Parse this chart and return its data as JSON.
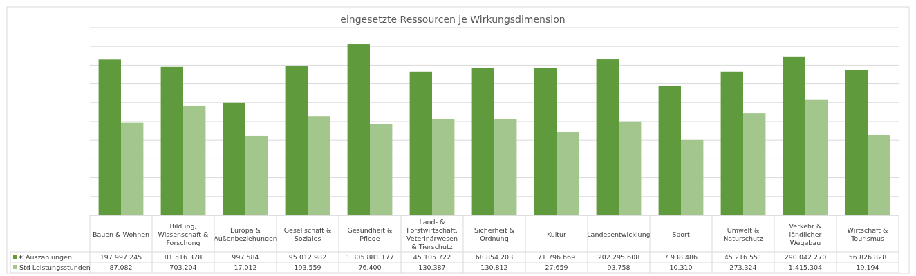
{
  "chart_data": {
    "type": "bar",
    "title": "eingesetzte Ressourcen je Wirkungsdimension",
    "categories": [
      "Bauen & Wohnen",
      "Bildung, Wissenschaft & Forschung",
      "Europa & Außenbeziehungen",
      "Gesellschaft & Soziales",
      "Gesundheit & Pflege",
      "Land- & Forstwirtschaft, Veterinärwesen & Tierschutz",
      "Sicherheit & Ordnung",
      "Kultur",
      "Landesentwicklung",
      "Sport",
      "Umwelt & Naturschutz",
      "Verkehr & ländlicher Wegebau",
      "Wirtschaft & Tourismus"
    ],
    "series": [
      {
        "name": "€ Auszahlungen",
        "color": "#5f9a3c",
        "values": [
          197997245,
          81516378,
          997584,
          95012982,
          1305881177,
          45105722,
          68854203,
          71796669,
          202295608,
          7938486,
          45216551,
          290042270,
          56826828
        ],
        "value_labels": [
          "197.997.245",
          "81.516.378",
          "997.584",
          "95.012.982",
          "1.305.881.177",
          "45.105.722",
          "68.854.203",
          "71.796.669",
          "202.295.608",
          "7.938.486",
          "45.216.551",
          "290.042.270",
          "56.826.828"
        ]
      },
      {
        "name": "Std Leistungsstunden",
        "color": "#a2c68b",
        "values": [
          87082,
          703204,
          17012,
          193559,
          76400,
          130387,
          130812,
          27659,
          93758,
          10310,
          273324,
          1415304,
          19194
        ],
        "value_labels": [
          "87.082",
          "703.204",
          "17.012",
          "193.559",
          "76.400",
          "130.387",
          "130.812",
          "27.659",
          "93.758",
          "10.310",
          "273.324",
          "1.415.304",
          "19.194"
        ]
      }
    ],
    "log": "y",
    "ylim": [
      1,
      10000000000
    ],
    "yticks": [
      {
        "value": 1,
        "label": null
      },
      {
        "value": 10,
        "label": null
      },
      {
        "value": 100,
        "label": null
      },
      {
        "value": 1000,
        "label": null
      },
      {
        "value": 10000,
        "label": null
      },
      {
        "value": 100000,
        "label": null
      },
      {
        "value": 1000000,
        "label": null
      },
      {
        "value": 10000000,
        "label": null
      },
      {
        "value": 100000000,
        "label": null
      },
      {
        "value": 1000000000,
        "label": null
      },
      {
        "value": 10000000000,
        "label": null
      }
    ],
    "tick_labels": "x",
    "grid": "y",
    "legend": "bottom left"
  }
}
